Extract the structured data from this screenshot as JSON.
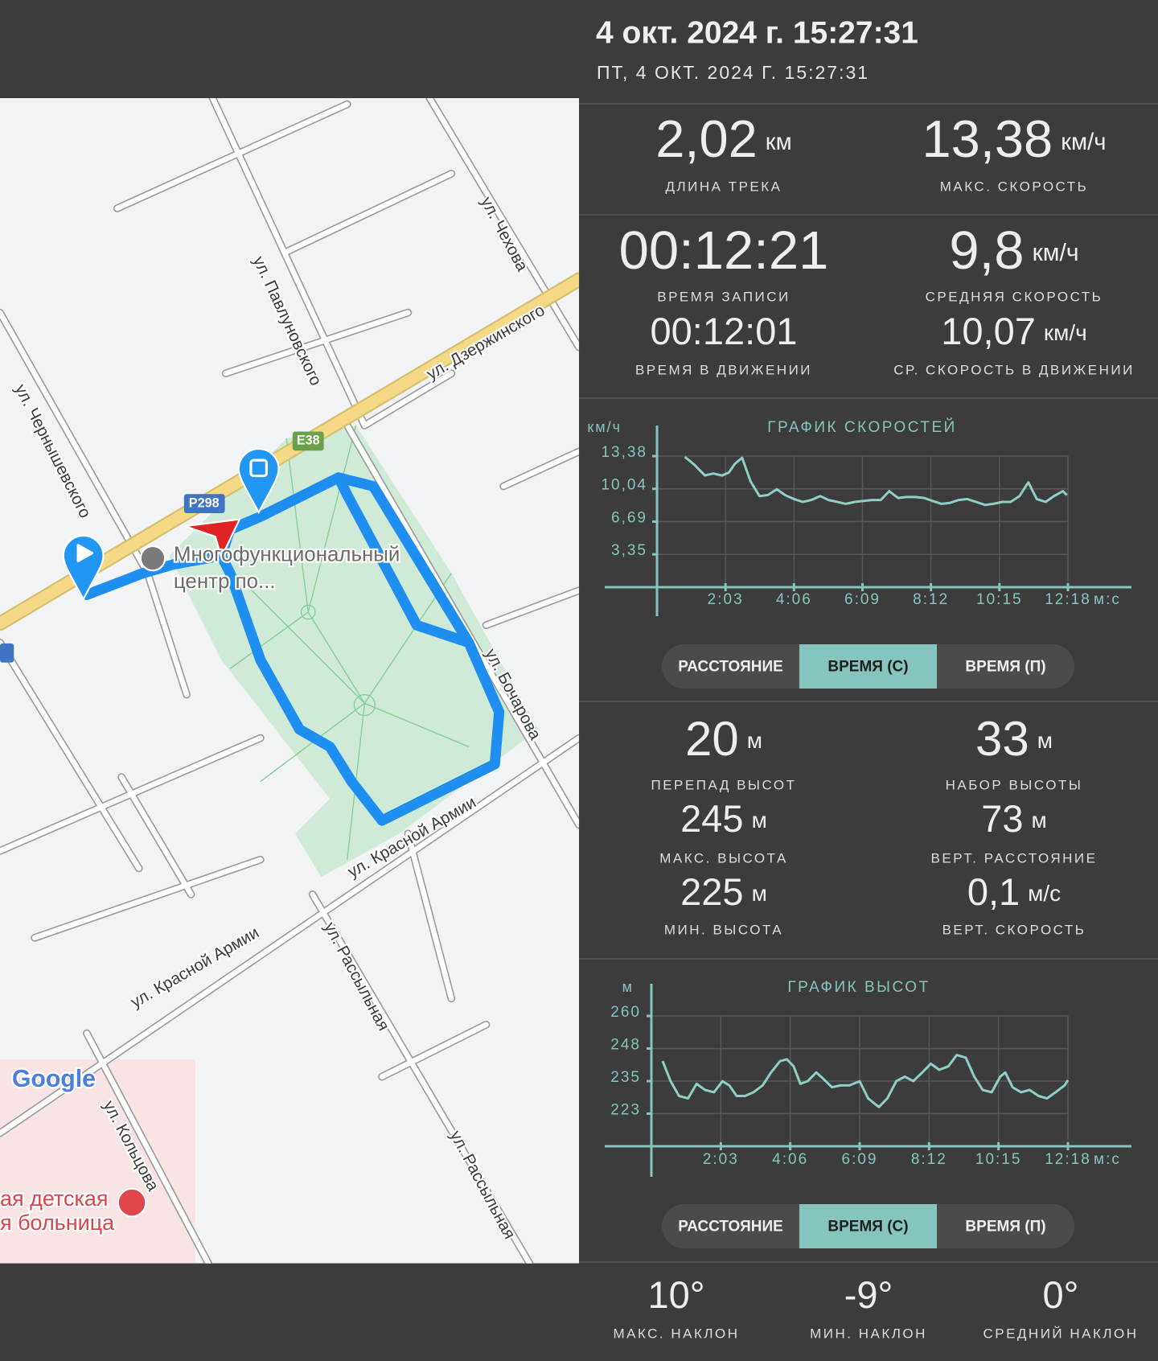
{
  "header": {
    "title": "4 окт. 2024 г. 15:27:31",
    "subtitle": "ПТ, 4 ОКТ. 2024 Г. 15:27:31"
  },
  "map": {
    "labels": [
      "ул. Дзержинского",
      "ул. Павлуновского",
      "ул. Чехова",
      "ул. Чернышевского",
      "ул. Бочарова",
      "ул. Красной Армии",
      "ул. Красной Армии",
      "ул. Рассыльная",
      "ул. Рассыльная",
      "ул. Кольцова",
      "Многофункциональный",
      "центр по...",
      "E38",
      "Р298",
      "Google",
      "ая детская",
      "я больница"
    ]
  },
  "track_stats": [
    {
      "value": "2,02",
      "unit": "км",
      "label": "ДЛИНА ТРЕКА"
    },
    {
      "value": "13,38",
      "unit": "км/ч",
      "label": "МАКС. СКОРОСТЬ"
    },
    {
      "value": "00:12:21",
      "label": "ВРЕМЯ ЗАПИСИ"
    },
    {
      "value": "9,8",
      "unit": "км/ч",
      "label": "СРЕДНЯЯ СКОРОСТЬ"
    },
    {
      "value": "00:12:01",
      "label": "ВРЕМЯ В ДВИЖЕНИИ"
    },
    {
      "value": "10,07",
      "unit": "км/ч",
      "label": "СР. СКОРОСТЬ В ДВИЖЕНИИ"
    }
  ],
  "chart_data": [
    {
      "type": "line",
      "title": "ГРАФИК СКОРОСТЕЙ",
      "y_label": "км/ч",
      "x_label": "м:с",
      "color": "#8fcfc6",
      "grid": true,
      "xlim": [
        0,
        738
      ],
      "ylim": [
        0,
        13.38
      ],
      "xticks": [
        {
          "value": 123,
          "label": "2:03"
        },
        {
          "value": 246,
          "label": "4:06"
        },
        {
          "value": 369,
          "label": "6:09"
        },
        {
          "value": 492,
          "label": "8:12"
        },
        {
          "value": 615,
          "label": "10:15"
        },
        {
          "value": 738,
          "label": "12:18"
        }
      ],
      "yticks": [
        {
          "value": 3.35,
          "label": "3,35"
        },
        {
          "value": 6.69,
          "label": "6,69"
        },
        {
          "value": 10.04,
          "label": "10,04"
        },
        {
          "value": 13.38,
          "label": "13,38"
        }
      ],
      "x": [
        50,
        67,
        86,
        101,
        117,
        129,
        140,
        153,
        168,
        184,
        199,
        215,
        230,
        246,
        262,
        277,
        293,
        308,
        324,
        339,
        355,
        371,
        386,
        402,
        417,
        433,
        448,
        464,
        480,
        495,
        511,
        526,
        542,
        557,
        573,
        589,
        604,
        620,
        635,
        651,
        667,
        682,
        698,
        713,
        729,
        736
      ],
      "values": [
        13.3,
        12.5,
        11.4,
        11.6,
        11.4,
        11.7,
        12.6,
        13.2,
        10.8,
        9.3,
        9.4,
        10.0,
        9.4,
        9.0,
        8.7,
        8.9,
        9.3,
        8.9,
        8.7,
        8.5,
        8.7,
        8.8,
        8.9,
        8.9,
        9.8,
        9.1,
        9.2,
        9.2,
        9.1,
        8.8,
        8.5,
        8.6,
        8.9,
        9.0,
        8.7,
        8.4,
        8.5,
        8.7,
        8.7,
        9.3,
        10.7,
        9.0,
        8.7,
        9.3,
        9.8,
        9.4
      ]
    },
    {
      "type": "line",
      "title": "ГРАФИК ВЫСОТ",
      "y_label": "м",
      "x_label": "м:с",
      "color": "#8fcfc6",
      "grid": true,
      "xlim": [
        0,
        738
      ],
      "ylim": [
        210.67,
        260
      ],
      "xticks": [
        {
          "value": 123,
          "label": "2:03"
        },
        {
          "value": 246,
          "label": "4:06"
        },
        {
          "value": 369,
          "label": "6:09"
        },
        {
          "value": 492,
          "label": "8:12"
        },
        {
          "value": 615,
          "label": "10:15"
        },
        {
          "value": 738,
          "label": "12:18"
        }
      ],
      "yticks": [
        223,
        {
          "value": 235.33,
          "label": "235"
        },
        {
          "value": 247.67,
          "label": "248"
        },
        260
      ],
      "x": [
        20,
        34,
        49,
        65,
        80,
        95,
        111,
        126,
        138,
        151,
        166,
        181,
        197,
        212,
        228,
        240,
        252,
        264,
        277,
        292,
        304,
        320,
        335,
        351,
        369,
        384,
        403,
        418,
        434,
        449,
        464,
        480,
        495,
        510,
        526,
        541,
        557,
        572,
        587,
        603,
        618,
        627,
        640,
        655,
        670,
        686,
        701,
        716,
        732,
        738
      ],
      "values": [
        242.9,
        235.3,
        229.7,
        228.8,
        234.3,
        232.0,
        231.1,
        235.3,
        233.7,
        229.7,
        229.7,
        231.1,
        233.7,
        238.6,
        242.9,
        243.6,
        240.9,
        234.3,
        235.3,
        238.6,
        236.3,
        233.0,
        233.7,
        233.7,
        235.3,
        228.8,
        225.5,
        228.8,
        235.3,
        237.0,
        235.3,
        238.6,
        241.9,
        239.6,
        240.9,
        245.2,
        244.2,
        237.0,
        232.0,
        231.1,
        237.0,
        238.6,
        233.0,
        231.1,
        232.0,
        229.7,
        228.8,
        231.1,
        233.7,
        235.7
      ]
    }
  ],
  "speed_tabs": {
    "options": [
      "РАССТОЯНИЕ",
      "ВРЕМЯ (С)",
      "ВРЕМЯ (П)"
    ],
    "selected": 1
  },
  "elevation_stats": [
    {
      "value": "20",
      "unit": "м",
      "label": "ПЕРЕПАД ВЫСОТ"
    },
    {
      "value": "33",
      "unit": "м",
      "label": "НАБОР ВЫСОТЫ"
    },
    {
      "value": "245",
      "unit": "м",
      "label": "МАКС. ВЫСОТА"
    },
    {
      "value": "73",
      "unit": "м",
      "label": "ВЕРТ. РАССТОЯНИЕ"
    },
    {
      "value": "225",
      "unit": "м",
      "label": "МИН. ВЫСОТА"
    },
    {
      "value": "0,1",
      "unit": "м/с",
      "label": "ВЕРТ. СКОРОСТЬ"
    }
  ],
  "altitude_tabs": {
    "options": [
      "РАССТОЯНИЕ",
      "ВРЕМЯ (С)",
      "ВРЕМЯ (П)"
    ],
    "selected": 1
  },
  "slope_stats": [
    {
      "value": "10°",
      "label": "МАКС. НАКЛОН"
    },
    {
      "value": "-9°",
      "label": "МИН. НАКЛОН"
    },
    {
      "value": "0°",
      "label": "СРЕДНИЙ НАКЛОН"
    }
  ]
}
